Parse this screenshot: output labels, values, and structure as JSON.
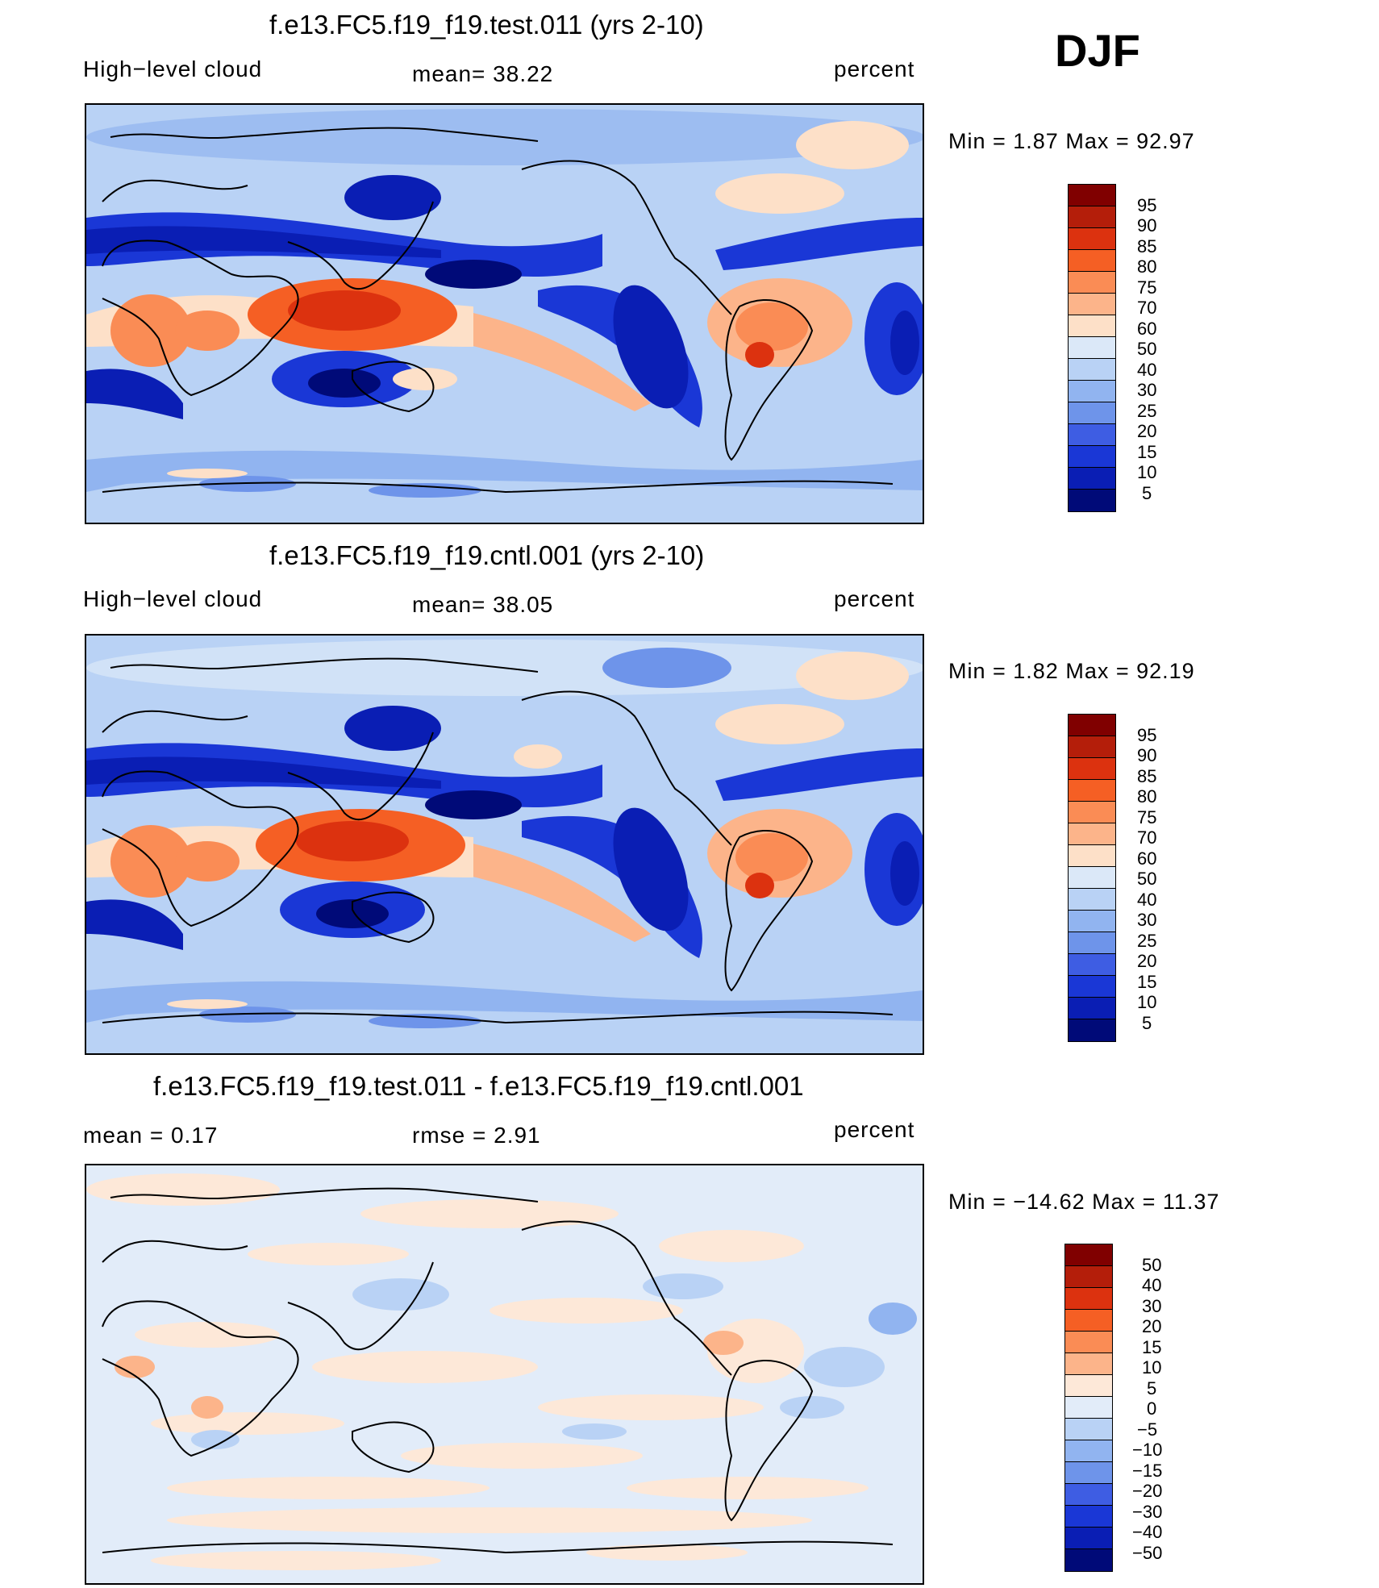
{
  "season": "DJF",
  "colors": {
    "abs": [
      "#800000",
      "#b41e0a",
      "#dc320f",
      "#f55f24",
      "#fa8c55",
      "#fcb48a",
      "#fde0c8",
      "#dbe8f8",
      "#b9d2f5",
      "#91b4f0",
      "#6e94ea",
      "#3e5de3",
      "#1a37d6",
      "#0a1eb4",
      "#000a78"
    ],
    "diff": [
      "#800000",
      "#b41e0a",
      "#dc320f",
      "#f55f24",
      "#fa8c55",
      "#fcb48a",
      "#fde8d8",
      "#e2ecf9",
      "#b9d2f5",
      "#91b4f0",
      "#6e94ea",
      "#3e5de3",
      "#1a37d6",
      "#0a1eb4",
      "#000a78"
    ]
  },
  "panels": [
    {
      "title": "f.e13.FC5.f19_f19.test.011 (yrs 2-10)",
      "variable": "High−level cloud",
      "stat": "mean=   38.22",
      "units": "percent",
      "minmax": "Min  =     1.87  Max  =     92.97",
      "ticks": [
        "95",
        "90",
        "85",
        "80",
        "75",
        "70",
        "60",
        "50",
        "40",
        "30",
        "25",
        "20",
        "15",
        "10",
        "5"
      ]
    },
    {
      "title": "f.e13.FC5.f19_f19.cntl.001 (yrs 2-10)",
      "variable": "High−level cloud",
      "stat": "mean=   38.05",
      "units": "percent",
      "minmax": "Min  =     1.82  Max  =     92.19",
      "ticks": [
        "95",
        "90",
        "85",
        "80",
        "75",
        "70",
        "60",
        "50",
        "40",
        "30",
        "25",
        "20",
        "15",
        "10",
        "5"
      ]
    },
    {
      "title": "f.e13.FC5.f19_f19.test.011 - f.e13.FC5.f19_f19.cntl.001",
      "variable": "mean  =     0.17",
      "stat": "rmse  =     2.91",
      "units": "percent",
      "minmax": "Min  = −14.62  Max  =     11.37",
      "ticks": [
        "50",
        "40",
        "30",
        "20",
        "15",
        "10",
        "5",
        "0",
        "−5",
        "−10",
        "−15",
        "−20",
        "−30",
        "−40",
        "−50"
      ]
    }
  ]
}
